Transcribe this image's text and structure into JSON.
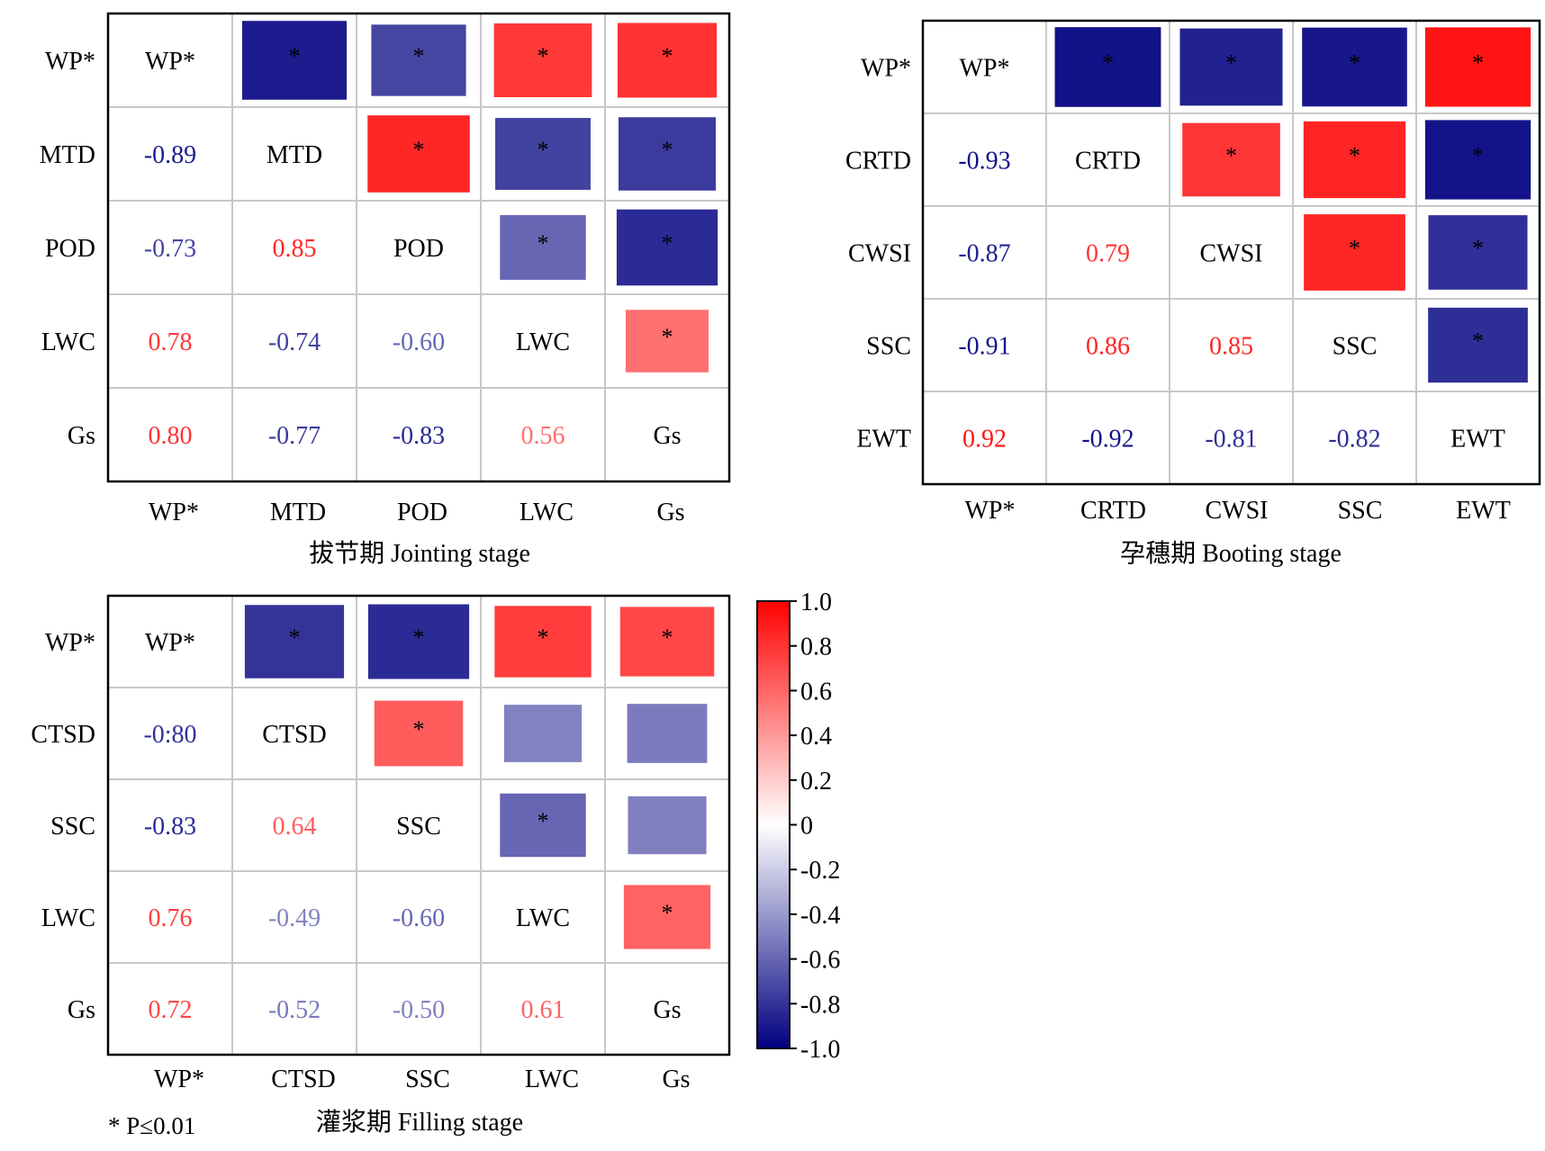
{
  "colors": {
    "positive": "#ff0000",
    "negative": "#000080",
    "neutral": "#ffffff",
    "grid": "#c8c8c8",
    "frame": "#000000"
  },
  "legend": {
    "ticks": [
      "1.0",
      "0.8",
      "0.6",
      "0.4",
      "0.2",
      "0",
      "-0.2",
      "-0.4",
      "-0.6",
      "-0.8",
      "-1.0"
    ],
    "tick_values": [
      1.0,
      0.8,
      0.6,
      0.4,
      0.2,
      0,
      -0.2,
      -0.4,
      -0.6,
      -0.8,
      -1.0
    ],
    "range": [
      -1.0,
      1.0
    ]
  },
  "note": "* P≤0.01",
  "chart_data": [
    {
      "type": "heatmap",
      "title": "拔节期 Jointing stage",
      "variables": [
        "WP*",
        "MTD",
        "POD",
        "LWC",
        "Gs"
      ],
      "matrix": [
        [
          1,
          -0.89,
          -0.73,
          0.78,
          0.8
        ],
        [
          -0.89,
          1,
          0.85,
          -0.74,
          -0.77
        ],
        [
          -0.73,
          0.85,
          1,
          -0.6,
          -0.83
        ],
        [
          0.78,
          -0.74,
          -0.6,
          1,
          0.56
        ],
        [
          0.8,
          -0.77,
          -0.83,
          0.56,
          1
        ]
      ],
      "value_labels": [
        [
          "",
          "",
          "",
          "",
          ""
        ],
        [
          "-0.89",
          "",
          "",
          "",
          ""
        ],
        [
          "-0.73",
          "0.85",
          "",
          "",
          ""
        ],
        [
          "0.78",
          "-0.74",
          "-0.60",
          "",
          ""
        ],
        [
          "0.80",
          "-0.77",
          "-0.83",
          "0.56",
          ""
        ]
      ],
      "significant": [
        [
          false,
          true,
          true,
          true,
          true
        ],
        [
          true,
          false,
          true,
          true,
          true
        ],
        [
          true,
          true,
          false,
          true,
          true
        ],
        [
          true,
          true,
          true,
          false,
          true
        ],
        [
          true,
          true,
          true,
          true,
          false
        ]
      ]
    },
    {
      "type": "heatmap",
      "title": "孕穗期 Booting stage",
      "variables": [
        "WP*",
        "CRTD",
        "CWSI",
        "SSC",
        "EWT"
      ],
      "matrix": [
        [
          1,
          -0.93,
          -0.87,
          -0.91,
          0.92
        ],
        [
          -0.93,
          1,
          0.79,
          0.86,
          -0.92
        ],
        [
          -0.87,
          0.79,
          1,
          0.85,
          -0.81
        ],
        [
          -0.91,
          0.86,
          0.85,
          1,
          -0.82
        ],
        [
          0.92,
          -0.92,
          -0.81,
          -0.82,
          1
        ]
      ],
      "value_labels": [
        [
          "",
          "",
          "",
          "",
          ""
        ],
        [
          "-0.93",
          "",
          "",
          "",
          ""
        ],
        [
          "-0.87",
          "0.79",
          "",
          "",
          ""
        ],
        [
          "-0.91",
          "0.86",
          "0.85",
          "",
          ""
        ],
        [
          "0.92",
          "-0.92",
          "-0.81",
          "-0.82",
          ""
        ]
      ],
      "significant": [
        [
          false,
          true,
          true,
          true,
          true
        ],
        [
          true,
          false,
          true,
          true,
          true
        ],
        [
          true,
          true,
          false,
          true,
          true
        ],
        [
          true,
          true,
          true,
          false,
          true
        ],
        [
          true,
          true,
          true,
          true,
          false
        ]
      ]
    },
    {
      "type": "heatmap",
      "title": "灌浆期 Filling stage",
      "variables": [
        "WP*",
        "CTSD",
        "SSC",
        "LWC",
        "Gs"
      ],
      "matrix": [
        [
          1,
          -0.8,
          -0.83,
          0.76,
          0.72
        ],
        [
          -0.8,
          1,
          0.64,
          -0.49,
          -0.52
        ],
        [
          -0.83,
          0.64,
          1,
          -0.6,
          -0.5
        ],
        [
          0.76,
          -0.49,
          -0.6,
          1,
          0.61
        ],
        [
          0.72,
          -0.52,
          -0.5,
          0.61,
          1
        ]
      ],
      "value_labels": [
        [
          "",
          "",
          "",
          "",
          ""
        ],
        [
          "-0:80",
          "",
          "",
          "",
          ""
        ],
        [
          "-0.83",
          "0.64",
          "",
          "",
          ""
        ],
        [
          "0.76",
          "-0.49",
          "-0.60",
          "",
          ""
        ],
        [
          "0.72",
          "-0.52",
          "-0.50",
          "0.61",
          ""
        ]
      ],
      "significant": [
        [
          false,
          true,
          true,
          true,
          true
        ],
        [
          true,
          false,
          true,
          false,
          false
        ],
        [
          true,
          true,
          false,
          true,
          false
        ],
        [
          true,
          false,
          true,
          false,
          true
        ],
        [
          true,
          false,
          false,
          true,
          false
        ]
      ]
    }
  ]
}
